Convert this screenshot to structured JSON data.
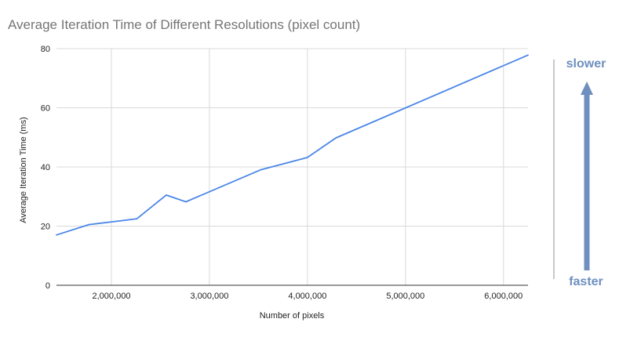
{
  "chart_data": {
    "type": "line",
    "title": "Average Iteration Time of Different Resolutions (pixel count)",
    "xlabel": "Number of pixels",
    "ylabel": "Average Iteration Time (ms)",
    "xlim": [
      1440000,
      6250000
    ],
    "ylim": [
      0,
      80
    ],
    "x_ticks": [
      2000000,
      3000000,
      4000000,
      5000000,
      6000000
    ],
    "x_tick_labels": [
      "2,000,000",
      "3,000,000",
      "4,000,000",
      "5,000,000",
      "6,000,000"
    ],
    "y_ticks": [
      0,
      20,
      40,
      60,
      80
    ],
    "y_tick_labels": [
      "0",
      "20",
      "40",
      "60",
      "80"
    ],
    "grid": true,
    "legend": "none",
    "series": [
      {
        "color": "#4a86e8",
        "x": [
          1440000,
          1770000,
          2070000,
          2260000,
          2560000,
          2760000,
          3520000,
          4000000,
          4290000,
          6250000
        ],
        "y": [
          17,
          20.5,
          21.7,
          22.5,
          30.5,
          28.2,
          39,
          43.2,
          49.8,
          77.8
        ]
      }
    ],
    "annotations": {
      "top_label": "slower",
      "bottom_label": "faster",
      "arrow_color": "#6e8fbf",
      "bar_color": "#c8c8c8"
    }
  }
}
